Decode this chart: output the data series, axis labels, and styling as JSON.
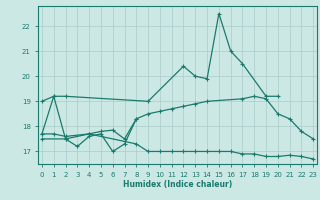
{
  "xlabel": "Humidex (Indice chaleur)",
  "series": [
    {
      "x": [
        0,
        1,
        2,
        9,
        12,
        13,
        14,
        15,
        16,
        17,
        19,
        20
      ],
      "y": [
        19.0,
        19.2,
        19.2,
        19.0,
        20.4,
        20.0,
        19.9,
        22.5,
        21.0,
        20.5,
        19.2,
        19.2
      ]
    },
    {
      "x": [
        0,
        1,
        2,
        3,
        4,
        5,
        6,
        7,
        8
      ],
      "y": [
        17.7,
        19.2,
        17.5,
        17.2,
        17.6,
        17.7,
        17.0,
        17.3,
        18.3
      ]
    },
    {
      "x": [
        0,
        1,
        2,
        4,
        5,
        6,
        7,
        8,
        9,
        10,
        11,
        12,
        13,
        14,
        17,
        18,
        19,
        20,
        21,
        22,
        23
      ],
      "y": [
        17.7,
        17.7,
        17.6,
        17.7,
        17.8,
        17.85,
        17.5,
        18.3,
        18.5,
        18.6,
        18.7,
        18.8,
        18.9,
        19.0,
        19.1,
        19.2,
        19.1,
        18.5,
        18.3,
        17.8,
        17.5
      ]
    },
    {
      "x": [
        0,
        2,
        4,
        8,
        9,
        10,
        11,
        12,
        13,
        14,
        15,
        16,
        17,
        18,
        19,
        20,
        21,
        22,
        23
      ],
      "y": [
        17.5,
        17.5,
        17.7,
        17.3,
        17.0,
        17.0,
        17.0,
        17.0,
        17.0,
        17.0,
        17.0,
        17.0,
        16.9,
        16.9,
        16.8,
        16.8,
        16.85,
        16.8,
        16.7
      ]
    }
  ],
  "line_color": "#1a7a6e",
  "bg_color": "#cce8e4",
  "grid_color": "#aaccca",
  "ylim": [
    16.5,
    22.8
  ],
  "xlim": [
    -0.3,
    23.3
  ],
  "yticks": [
    17,
    18,
    19,
    20,
    21,
    22
  ],
  "xticks": [
    0,
    1,
    2,
    3,
    4,
    5,
    6,
    7,
    8,
    9,
    10,
    11,
    12,
    13,
    14,
    15,
    16,
    17,
    18,
    19,
    20,
    21,
    22,
    23
  ]
}
